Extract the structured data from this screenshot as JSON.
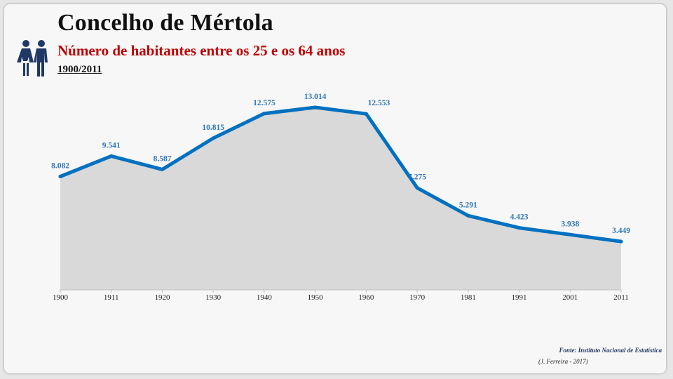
{
  "header": {
    "title": "Concelho de Mértola",
    "subtitle": "Número de habitantes entre os 25 e os 64 anos",
    "period": "1900/2011",
    "icon": "people-icon"
  },
  "footer": {
    "source": "Fonte: Instituto Nacional de Estatística",
    "credit": "(J. Ferreira - 2017)"
  },
  "colors": {
    "line": "#0070c0",
    "area": "#d9d9d9",
    "labels": "#2e75b6",
    "subtitle": "#c00000"
  },
  "chart_data": {
    "type": "area",
    "categories": [
      "1900",
      "1911",
      "1920",
      "1930",
      "1940",
      "1950",
      "1960",
      "1970",
      "1981",
      "1991",
      "2001",
      "2011"
    ],
    "values": [
      8082,
      9541,
      8587,
      10815,
      12575,
      13014,
      12553,
      7275,
      5291,
      4423,
      3938,
      3449
    ],
    "value_labels": [
      "8.082",
      "9.541",
      "8.587",
      "10.815",
      "12.575",
      "13.014",
      "12.553",
      "7.275",
      "5.291",
      "4.423",
      "3.938",
      "3.449"
    ],
    "ylim": [
      0,
      13870
    ],
    "grid": false,
    "legend": "none"
  }
}
